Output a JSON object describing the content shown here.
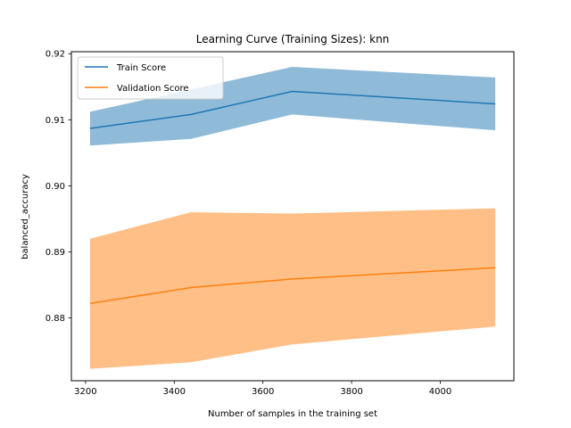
{
  "chart_data": {
    "type": "line",
    "title": "Learning Curve (Training Sizes): knn",
    "xlabel": "Number of samples in the training set",
    "ylabel": "balanced_accuracy",
    "xlim": [
      3168,
      4166
    ],
    "ylim": [
      0.8705,
      0.9203
    ],
    "xticks": [
      3200,
      3400,
      3600,
      3800,
      4000
    ],
    "yticks": [
      0.88,
      0.89,
      0.9,
      0.91,
      0.92
    ],
    "ytick_labels": [
      "0.88",
      "0.89",
      "0.90",
      "0.91",
      "0.92"
    ],
    "x": [
      3210,
      3438,
      3666,
      4124
    ],
    "legend_position": "upper-left",
    "series": [
      {
        "name": "Train Score",
        "color": "#1f77b4",
        "band_color": "#1f77b4",
        "mean": [
          0.9087,
          0.9108,
          0.9143,
          0.9124
        ],
        "lower": [
          0.9061,
          0.9071,
          0.9108,
          0.9084
        ],
        "upper": [
          0.9112,
          0.9146,
          0.918,
          0.9164
        ]
      },
      {
        "name": "Validation Score",
        "color": "#ff7f0e",
        "band_color": "#ff7f0e",
        "mean": [
          0.8822,
          0.8846,
          0.8859,
          0.8876
        ],
        "lower": [
          0.8723,
          0.8733,
          0.876,
          0.8787
        ],
        "upper": [
          0.892,
          0.896,
          0.8958,
          0.8966
        ]
      }
    ]
  }
}
